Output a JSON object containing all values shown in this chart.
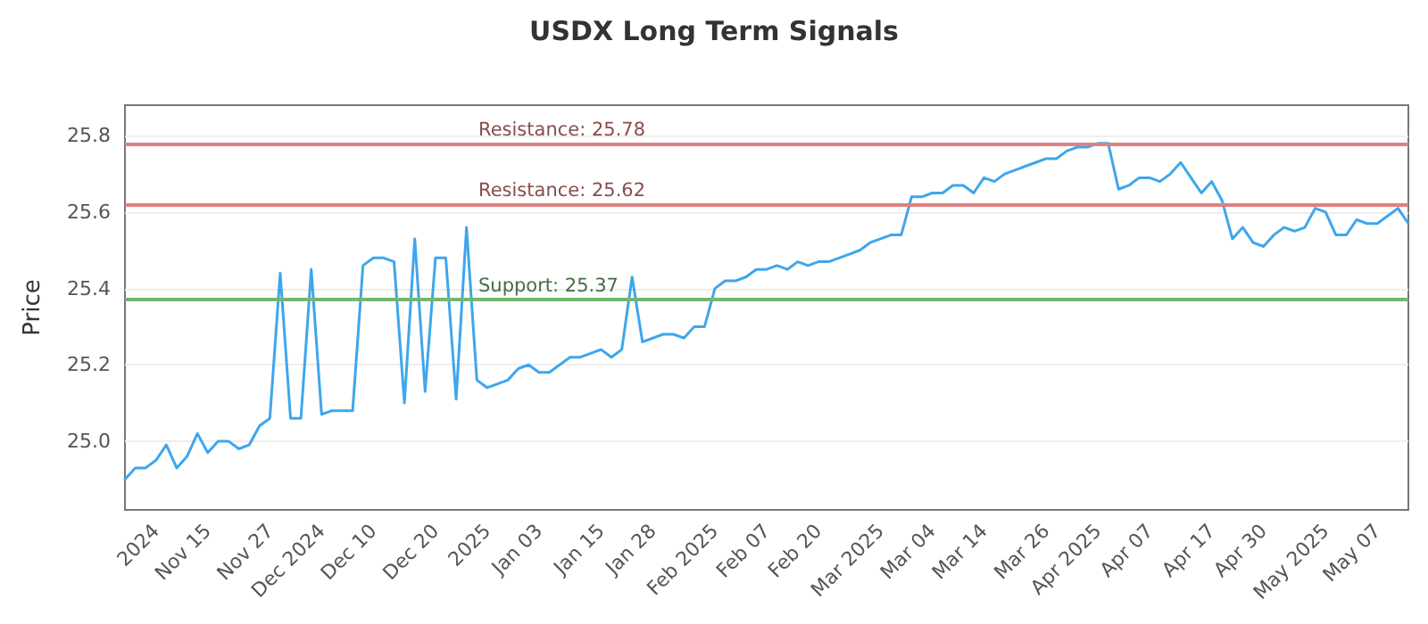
{
  "chart_data": {
    "type": "line",
    "title": "USDX Long Term Signals",
    "ylabel": "Price",
    "categories": [
      null,
      null,
      null,
      "2024",
      null,
      null,
      null,
      null,
      "Nov 15",
      null,
      null,
      null,
      null,
      null,
      "Nov 27",
      null,
      null,
      null,
      null,
      "Dec 2024",
      null,
      null,
      null,
      null,
      "Dec 10",
      null,
      null,
      null,
      null,
      null,
      "Dec 20",
      null,
      null,
      null,
      null,
      "2025",
      null,
      null,
      null,
      null,
      "Jan 03",
      null,
      null,
      null,
      null,
      null,
      "Jan 15",
      null,
      null,
      null,
      null,
      "Jan 28",
      null,
      null,
      null,
      null,
      null,
      "Feb 2025",
      null,
      null,
      null,
      null,
      "Feb 07",
      null,
      null,
      null,
      null,
      "Feb 20",
      null,
      null,
      null,
      null,
      null,
      "Mar 2025",
      null,
      null,
      null,
      null,
      "Mar 04",
      null,
      null,
      null,
      null,
      "Mar 14",
      null,
      null,
      null,
      null,
      null,
      "Mar 26",
      null,
      null,
      null,
      null,
      "Apr 2025",
      null,
      null,
      null,
      null,
      "Apr 07",
      null,
      null,
      null,
      null,
      null,
      "Apr 17",
      null,
      null,
      null,
      null,
      "Apr 30",
      null,
      null,
      null,
      null,
      null,
      "May 2025",
      null,
      null,
      null,
      null,
      "May 07",
      null,
      null,
      null
    ],
    "series": [
      {
        "color": "#3ea6ec",
        "values": [
          24.9,
          24.93,
          24.93,
          24.95,
          24.99,
          24.93,
          24.96,
          25.02,
          24.97,
          25.0,
          25.0,
          24.98,
          24.99,
          25.04,
          25.06,
          25.44,
          25.06,
          25.06,
          25.45,
          25.07,
          25.08,
          25.08,
          25.08,
          25.46,
          25.48,
          25.48,
          25.47,
          25.1,
          25.53,
          25.13,
          25.48,
          25.48,
          25.11,
          25.56,
          25.16,
          25.14,
          25.15,
          25.16,
          25.19,
          25.2,
          25.18,
          25.18,
          25.2,
          25.22,
          25.22,
          25.23,
          25.24,
          25.22,
          25.24,
          25.43,
          25.26,
          25.27,
          25.28,
          25.28,
          25.27,
          25.3,
          25.3,
          25.4,
          25.42,
          25.42,
          25.43,
          25.45,
          25.45,
          25.46,
          25.45,
          25.47,
          25.46,
          25.47,
          25.47,
          25.48,
          25.49,
          25.5,
          25.52,
          25.53,
          25.54,
          25.54,
          25.64,
          25.64,
          25.65,
          25.65,
          25.67,
          25.67,
          25.65,
          25.69,
          25.68,
          25.7,
          25.71,
          25.72,
          25.73,
          25.74,
          25.74,
          25.76,
          25.77,
          25.77,
          25.78,
          25.78,
          25.66,
          25.67,
          25.69,
          25.69,
          25.68,
          25.7,
          25.73,
          25.69,
          25.65,
          25.68,
          25.63,
          25.53,
          25.56,
          25.52,
          25.51,
          25.54,
          25.56,
          25.55,
          25.56,
          25.61,
          25.6,
          25.54,
          25.54,
          25.58,
          25.57,
          25.57,
          25.59,
          25.61,
          25.57
        ]
      }
    ],
    "ylim": [
      24.82,
      25.88
    ],
    "yticks": [
      {
        "value": 25.0,
        "label": "25.0"
      },
      25.2,
      25.4,
      25.6,
      25.8
    ],
    "ref_lines": [
      {
        "axis": "y",
        "value": 25.78,
        "label": "Resistance: 25.78",
        "color": "#e08080"
      },
      {
        "axis": "y",
        "value": 25.62,
        "label": "Resistance: 25.62",
        "color": "#e08080"
      },
      {
        "axis": "y",
        "value": 25.37,
        "label": "Support: 25.37",
        "color": "#72b872"
      }
    ],
    "grid": "y",
    "marker": "none",
    "line_style": "solid"
  }
}
